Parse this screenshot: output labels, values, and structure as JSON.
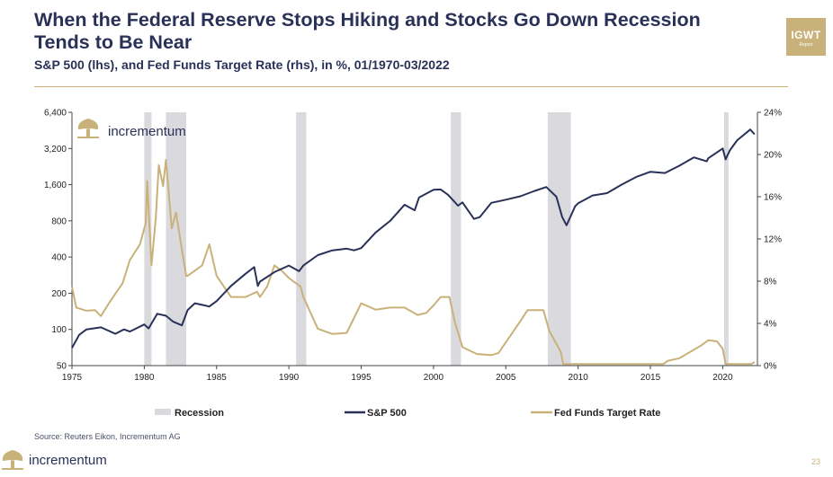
{
  "title": "When the Federal Reserve Stops Hiking and Stocks Go Down Recession Tends to Be Near",
  "subtitle": "S&P 500 (lhs), and Fed Funds Target Rate (rhs), in %, 01/1970-03/2022",
  "badge": {
    "line1": "IGWT",
    "line2": "Report"
  },
  "source": "Source: Reuters Eikon, Incrementum AG",
  "brand": "incrementum",
  "page_number": "23",
  "colors": {
    "navy": "#2a3158",
    "gold": "#c9b27a",
    "recession": "#d9d9de"
  },
  "chart_data": {
    "type": "line",
    "x_range": [
      1975,
      2022.4
    ],
    "x_ticks": [
      1975,
      1980,
      1985,
      1990,
      1995,
      2000,
      2005,
      2010,
      2015,
      2020
    ],
    "y_left": {
      "scale": "log",
      "range": [
        50,
        6400
      ],
      "ticks": [
        50,
        100,
        200,
        400,
        800,
        1600,
        3200,
        6400
      ],
      "tick_labels": [
        "50",
        "100",
        "200",
        "400",
        "800",
        "1,600",
        "3,200",
        "6,400"
      ]
    },
    "y_right": {
      "range": [
        0,
        24
      ],
      "ticks": [
        0,
        4,
        8,
        12,
        16,
        20,
        24
      ],
      "tick_labels": [
        "0%",
        "4%",
        "8%",
        "12%",
        "16%",
        "20%",
        "24%"
      ]
    },
    "recessions": [
      [
        1980.0,
        1980.5
      ],
      [
        1981.5,
        1982.9
      ],
      [
        1990.5,
        1991.2
      ],
      [
        2001.2,
        2001.9
      ],
      [
        2007.9,
        2009.5
      ],
      [
        2020.1,
        2020.4
      ]
    ],
    "legend": [
      "Recession",
      "S&P 500",
      "Fed Funds Target Rate"
    ],
    "series": [
      {
        "name": "S&P 500",
        "axis": "left",
        "color": "#2a3158",
        "points": [
          [
            1975,
            70
          ],
          [
            1975.5,
            90
          ],
          [
            1976,
            100
          ],
          [
            1977,
            104
          ],
          [
            1978,
            92
          ],
          [
            1978.6,
            100
          ],
          [
            1979,
            96
          ],
          [
            1980,
            110
          ],
          [
            1980.3,
            102
          ],
          [
            1980.9,
            135
          ],
          [
            1981.5,
            130
          ],
          [
            1982,
            116
          ],
          [
            1982.6,
            108
          ],
          [
            1983,
            145
          ],
          [
            1983.5,
            165
          ],
          [
            1984,
            160
          ],
          [
            1984.5,
            155
          ],
          [
            1985,
            172
          ],
          [
            1986,
            230
          ],
          [
            1987,
            290
          ],
          [
            1987.6,
            330
          ],
          [
            1987.85,
            230
          ],
          [
            1988,
            250
          ],
          [
            1989,
            300
          ],
          [
            1990,
            340
          ],
          [
            1990.7,
            305
          ],
          [
            1991,
            340
          ],
          [
            1992,
            415
          ],
          [
            1993,
            455
          ],
          [
            1994,
            470
          ],
          [
            1994.5,
            455
          ],
          [
            1995,
            475
          ],
          [
            1996,
            640
          ],
          [
            1997,
            800
          ],
          [
            1998,
            1090
          ],
          [
            1998.7,
            980
          ],
          [
            1999,
            1250
          ],
          [
            2000,
            1450
          ],
          [
            2000.5,
            1460
          ],
          [
            2001,
            1320
          ],
          [
            2001.7,
            1070
          ],
          [
            2002,
            1140
          ],
          [
            2002.8,
            830
          ],
          [
            2003.2,
            860
          ],
          [
            2004,
            1130
          ],
          [
            2005,
            1200
          ],
          [
            2006,
            1280
          ],
          [
            2007,
            1420
          ],
          [
            2007.8,
            1530
          ],
          [
            2008.5,
            1270
          ],
          [
            2008.9,
            860
          ],
          [
            2009.2,
            735
          ],
          [
            2009.8,
            1060
          ],
          [
            2010,
            1120
          ],
          [
            2011,
            1300
          ],
          [
            2012,
            1360
          ],
          [
            2013,
            1600
          ],
          [
            2014,
            1850
          ],
          [
            2015,
            2050
          ],
          [
            2016,
            2000
          ],
          [
            2017,
            2300
          ],
          [
            2018,
            2700
          ],
          [
            2018.9,
            2500
          ],
          [
            2019,
            2650
          ],
          [
            2020,
            3200
          ],
          [
            2020.2,
            2600
          ],
          [
            2020.5,
            3100
          ],
          [
            2021,
            3750
          ],
          [
            2021.9,
            4600
          ],
          [
            2022.2,
            4200
          ]
        ]
      },
      {
        "name": "Fed Funds Target Rate",
        "axis": "right",
        "color": "#c9b27a",
        "points": [
          [
            1975,
            7.5
          ],
          [
            1975.3,
            5.5
          ],
          [
            1976,
            5.2
          ],
          [
            1976.6,
            5.25
          ],
          [
            1977,
            4.7
          ],
          [
            1977.6,
            6
          ],
          [
            1978,
            6.8
          ],
          [
            1978.5,
            7.8
          ],
          [
            1979,
            10
          ],
          [
            1979.7,
            11.5
          ],
          [
            1980.1,
            13.5
          ],
          [
            1980.2,
            17.5
          ],
          [
            1980.5,
            9.5
          ],
          [
            1980.8,
            14
          ],
          [
            1981,
            19
          ],
          [
            1981.3,
            17
          ],
          [
            1981.5,
            19.5
          ],
          [
            1981.9,
            13
          ],
          [
            1982.2,
            14.5
          ],
          [
            1982.6,
            11
          ],
          [
            1982.9,
            8.5
          ],
          [
            1983,
            8.5
          ],
          [
            1984,
            9.5
          ],
          [
            1984.5,
            11.5
          ],
          [
            1985,
            8.5
          ],
          [
            1986,
            6.5
          ],
          [
            1987,
            6.5
          ],
          [
            1987.8,
            7
          ],
          [
            1988,
            6.5
          ],
          [
            1988.5,
            7.5
          ],
          [
            1989,
            9.5
          ],
          [
            1989.5,
            9
          ],
          [
            1990,
            8.3
          ],
          [
            1990.8,
            7.5
          ],
          [
            1991,
            6.5
          ],
          [
            1992,
            3.5
          ],
          [
            1993,
            3
          ],
          [
            1994,
            3.1
          ],
          [
            1994.5,
            4.5
          ],
          [
            1995,
            5.9
          ],
          [
            1996,
            5.3
          ],
          [
            1997,
            5.5
          ],
          [
            1998,
            5.5
          ],
          [
            1998.9,
            4.8
          ],
          [
            1999.5,
            5
          ],
          [
            2000,
            5.7
          ],
          [
            2000.5,
            6.5
          ],
          [
            2001.1,
            6.5
          ],
          [
            2001.5,
            4
          ],
          [
            2002,
            1.75
          ],
          [
            2003,
            1.1
          ],
          [
            2004,
            1
          ],
          [
            2004.5,
            1.2
          ],
          [
            2005,
            2.2
          ],
          [
            2006,
            4.2
          ],
          [
            2006.5,
            5.25
          ],
          [
            2007.6,
            5.25
          ],
          [
            2008,
            3.3
          ],
          [
            2008.8,
            1.3
          ],
          [
            2008.97,
            0.15
          ],
          [
            2015.9,
            0.15
          ],
          [
            2016.2,
            0.45
          ],
          [
            2017,
            0.7
          ],
          [
            2018,
            1.5
          ],
          [
            2018.5,
            1.9
          ],
          [
            2019,
            2.4
          ],
          [
            2019.6,
            2.3
          ],
          [
            2020,
            1.6
          ],
          [
            2020.2,
            0.15
          ],
          [
            2022,
            0.15
          ],
          [
            2022.2,
            0.35
          ]
        ]
      }
    ]
  }
}
